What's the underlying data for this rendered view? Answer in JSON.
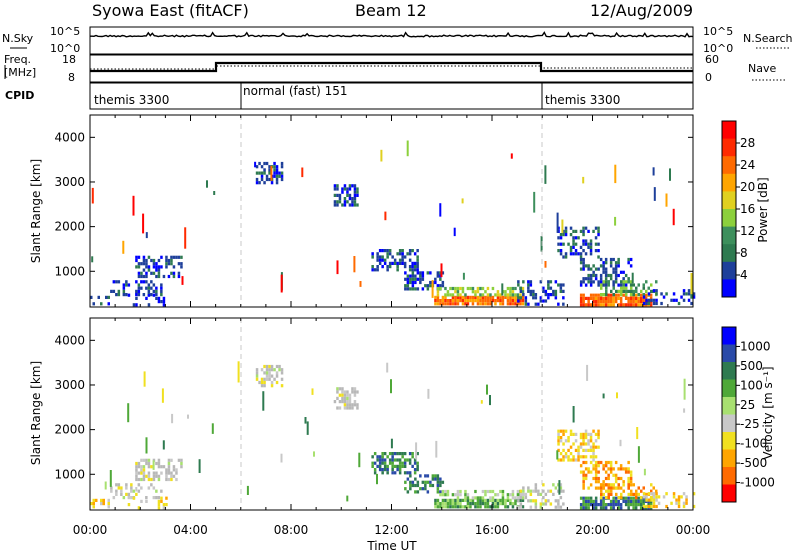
{
  "header": {
    "title": "Syowa East (fitACF)",
    "beam": "Beam 12",
    "date": "12/Aug/2009"
  },
  "nsky_panel": {
    "left_label": "N.Sky",
    "left_ticks": [
      "10^5",
      "10^0"
    ],
    "right_label": "N.Search",
    "right_ticks": [
      "10^5",
      "10^0"
    ]
  },
  "freq_panel": {
    "left_label_1": "Freq.",
    "left_label_2": "[MHz]",
    "left_ticks": [
      "18",
      "8"
    ],
    "right_label": "Nave",
    "right_ticks": [
      "60",
      "0"
    ]
  },
  "cpid_panel": {
    "label": "CPID",
    "segments": [
      {
        "label": "themis 3300",
        "start_h": 0,
        "end_h": 6
      },
      {
        "label": "normal (fast) 151",
        "start_h": 6,
        "end_h": 18
      },
      {
        "label": "themis 3300",
        "start_h": 18,
        "end_h": 24
      }
    ]
  },
  "colors": {
    "power": [
      "#0000ff",
      "#1e3f9a",
      "#2e7a50",
      "#3d8f5c",
      "#8cd03c",
      "#e0d020",
      "#ffa500",
      "#ff6a00",
      "#ff2a00",
      "#ff0000"
    ],
    "velocity": [
      "#0000ff",
      "#2a4aa8",
      "#2e7a50",
      "#4fa838",
      "#a8e070",
      "#c8c8c8",
      "#f0e020",
      "#ffa500",
      "#ff6a00",
      "#ff0000"
    ],
    "velocity_cloud": "#b8b8b8"
  },
  "chart_data": [
    {
      "type": "heatmap",
      "panel": "power",
      "ylabel": "Slant Range [km]",
      "yticks": [
        "1000",
        "2000",
        "3000",
        "4000"
      ],
      "ylim": [
        200,
        4500
      ],
      "xlim": [
        0,
        24
      ],
      "colorbar": {
        "label": "Power [dB]",
        "ticks": [
          "4",
          "8",
          "12",
          "16",
          "20",
          "24",
          "28"
        ],
        "range": [
          0,
          30
        ]
      },
      "regions": [
        {
          "t": [
            0.0,
            0.7
          ],
          "r": [
            250,
            450
          ],
          "level": 1,
          "density": 0.45
        },
        {
          "t": [
            0.8,
            2.8
          ],
          "r": [
            500,
            800
          ],
          "level": 1,
          "density": 0.4
        },
        {
          "t": [
            1.8,
            3.6
          ],
          "r": [
            900,
            1350
          ],
          "level": 1,
          "density": 0.45
        },
        {
          "t": [
            1.5,
            3.0
          ],
          "r": [
            250,
            500
          ],
          "level": 0,
          "density": 0.25
        },
        {
          "t": [
            6.6,
            7.6
          ],
          "r": [
            2950,
            3450
          ],
          "level": 1,
          "density": 0.55
        },
        {
          "t": [
            9.7,
            10.6
          ],
          "r": [
            2500,
            2950
          ],
          "level": 1,
          "density": 0.6
        },
        {
          "t": [
            11.2,
            13.0
          ],
          "r": [
            1000,
            1500
          ],
          "level": 1,
          "density": 0.6
        },
        {
          "t": [
            12.5,
            14.0
          ],
          "r": [
            600,
            1000
          ],
          "level": 1,
          "density": 0.5
        },
        {
          "t": [
            13.7,
            17.2
          ],
          "r": [
            280,
            450
          ],
          "level": 7,
          "density": 0.9
        },
        {
          "t": [
            13.7,
            17.2
          ],
          "r": [
            450,
            650
          ],
          "level": 4,
          "density": 0.5
        },
        {
          "t": [
            17.0,
            18.8
          ],
          "r": [
            250,
            800
          ],
          "level": 1,
          "density": 0.4
        },
        {
          "t": [
            18.6,
            20.2
          ],
          "r": [
            1300,
            2000
          ],
          "level": 1,
          "density": 0.45
        },
        {
          "t": [
            19.5,
            21.5
          ],
          "r": [
            700,
            1300
          ],
          "level": 1,
          "density": 0.5
        },
        {
          "t": [
            19.5,
            22.3
          ],
          "r": [
            280,
            500
          ],
          "level": 7,
          "density": 0.8
        },
        {
          "t": [
            20.3,
            22.5
          ],
          "r": [
            500,
            800
          ],
          "level": 3,
          "density": 0.45
        },
        {
          "t": [
            22.0,
            24.0
          ],
          "r": [
            250,
            600
          ],
          "level": 1,
          "density": 0.35
        }
      ]
    },
    {
      "type": "heatmap",
      "panel": "velocity",
      "ylabel": "Slant Range [km]",
      "yticks": [
        "1000",
        "2000",
        "3000",
        "4000"
      ],
      "ylim": [
        200,
        4500
      ],
      "xlim": [
        0,
        24
      ],
      "xlabel": "Time UT",
      "xticks": [
        "00:00",
        "04:00",
        "08:00",
        "12:00",
        "16:00",
        "20:00",
        "00:00"
      ],
      "colorbar": {
        "label": "Velocity [m s⁻¹]",
        "ticks": [
          "1000",
          "500",
          "100",
          "25",
          "-25",
          "-100",
          "-500",
          "-1000"
        ],
        "range": [
          -1200,
          1200
        ]
      },
      "regions": [
        {
          "t": [
            0.0,
            0.7
          ],
          "r": [
            250,
            450
          ],
          "level": 6,
          "density": 0.45
        },
        {
          "t": [
            0.8,
            2.8
          ],
          "r": [
            500,
            800
          ],
          "level": 5,
          "density": 0.4
        },
        {
          "t": [
            1.8,
            3.6
          ],
          "r": [
            900,
            1350
          ],
          "level": 5,
          "density": 0.45
        },
        {
          "t": [
            1.5,
            3.0
          ],
          "r": [
            250,
            500
          ],
          "level": 6,
          "density": 0.25
        },
        {
          "t": [
            6.6,
            7.6
          ],
          "r": [
            2950,
            3450
          ],
          "level": 5,
          "density": 0.55
        },
        {
          "t": [
            9.7,
            10.6
          ],
          "r": [
            2500,
            2950
          ],
          "level": 5,
          "density": 0.6
        },
        {
          "t": [
            11.2,
            13.0
          ],
          "r": [
            1000,
            1500
          ],
          "level": 2,
          "density": 0.6
        },
        {
          "t": [
            12.5,
            14.0
          ],
          "r": [
            600,
            1000
          ],
          "level": 2,
          "density": 0.5
        },
        {
          "t": [
            13.7,
            17.2
          ],
          "r": [
            280,
            450
          ],
          "level": 3,
          "density": 0.9
        },
        {
          "t": [
            13.7,
            17.2
          ],
          "r": [
            450,
            650
          ],
          "level": 4,
          "density": 0.5
        },
        {
          "t": [
            17.0,
            18.8
          ],
          "r": [
            250,
            800
          ],
          "level": 5,
          "density": 0.4
        },
        {
          "t": [
            18.6,
            20.2
          ],
          "r": [
            1300,
            2000
          ],
          "level": 6,
          "density": 0.45
        },
        {
          "t": [
            19.5,
            21.5
          ],
          "r": [
            700,
            1300
          ],
          "level": 7,
          "density": 0.5
        },
        {
          "t": [
            19.5,
            22.3
          ],
          "r": [
            280,
            500
          ],
          "level": 2,
          "density": 0.8
        },
        {
          "t": [
            20.3,
            22.5
          ],
          "r": [
            500,
            800
          ],
          "level": 7,
          "density": 0.45
        },
        {
          "t": [
            22.0,
            24.0
          ],
          "r": [
            250,
            600
          ],
          "level": 6,
          "density": 0.35
        }
      ]
    }
  ]
}
